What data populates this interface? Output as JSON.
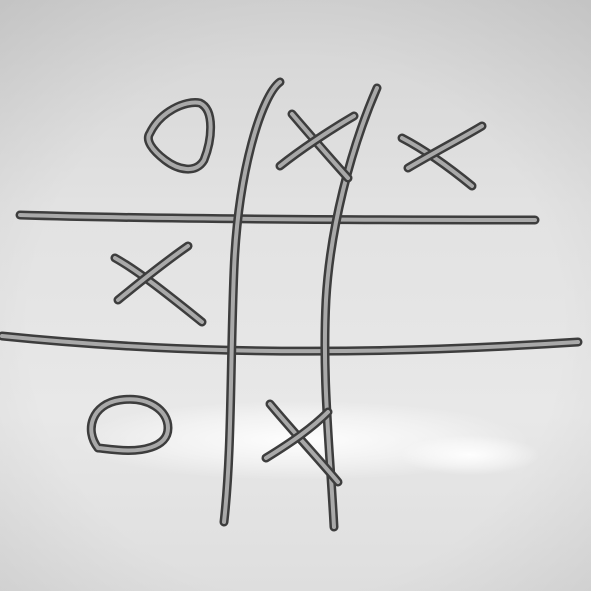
{
  "board": {
    "grid": "3x3",
    "cells": [
      [
        "O",
        "X",
        "X"
      ],
      [
        "X",
        "",
        ""
      ],
      [
        "O",
        "X",
        ""
      ]
    ]
  },
  "colors": {
    "whiteboard_light": "#efefef",
    "whiteboard_mid": "#dcdcdc",
    "whiteboard_shadow": "#c8c8c8",
    "glare": "#ffffff",
    "marker_edge": "#3d3d3d",
    "marker_core": "#a9a9a9"
  }
}
